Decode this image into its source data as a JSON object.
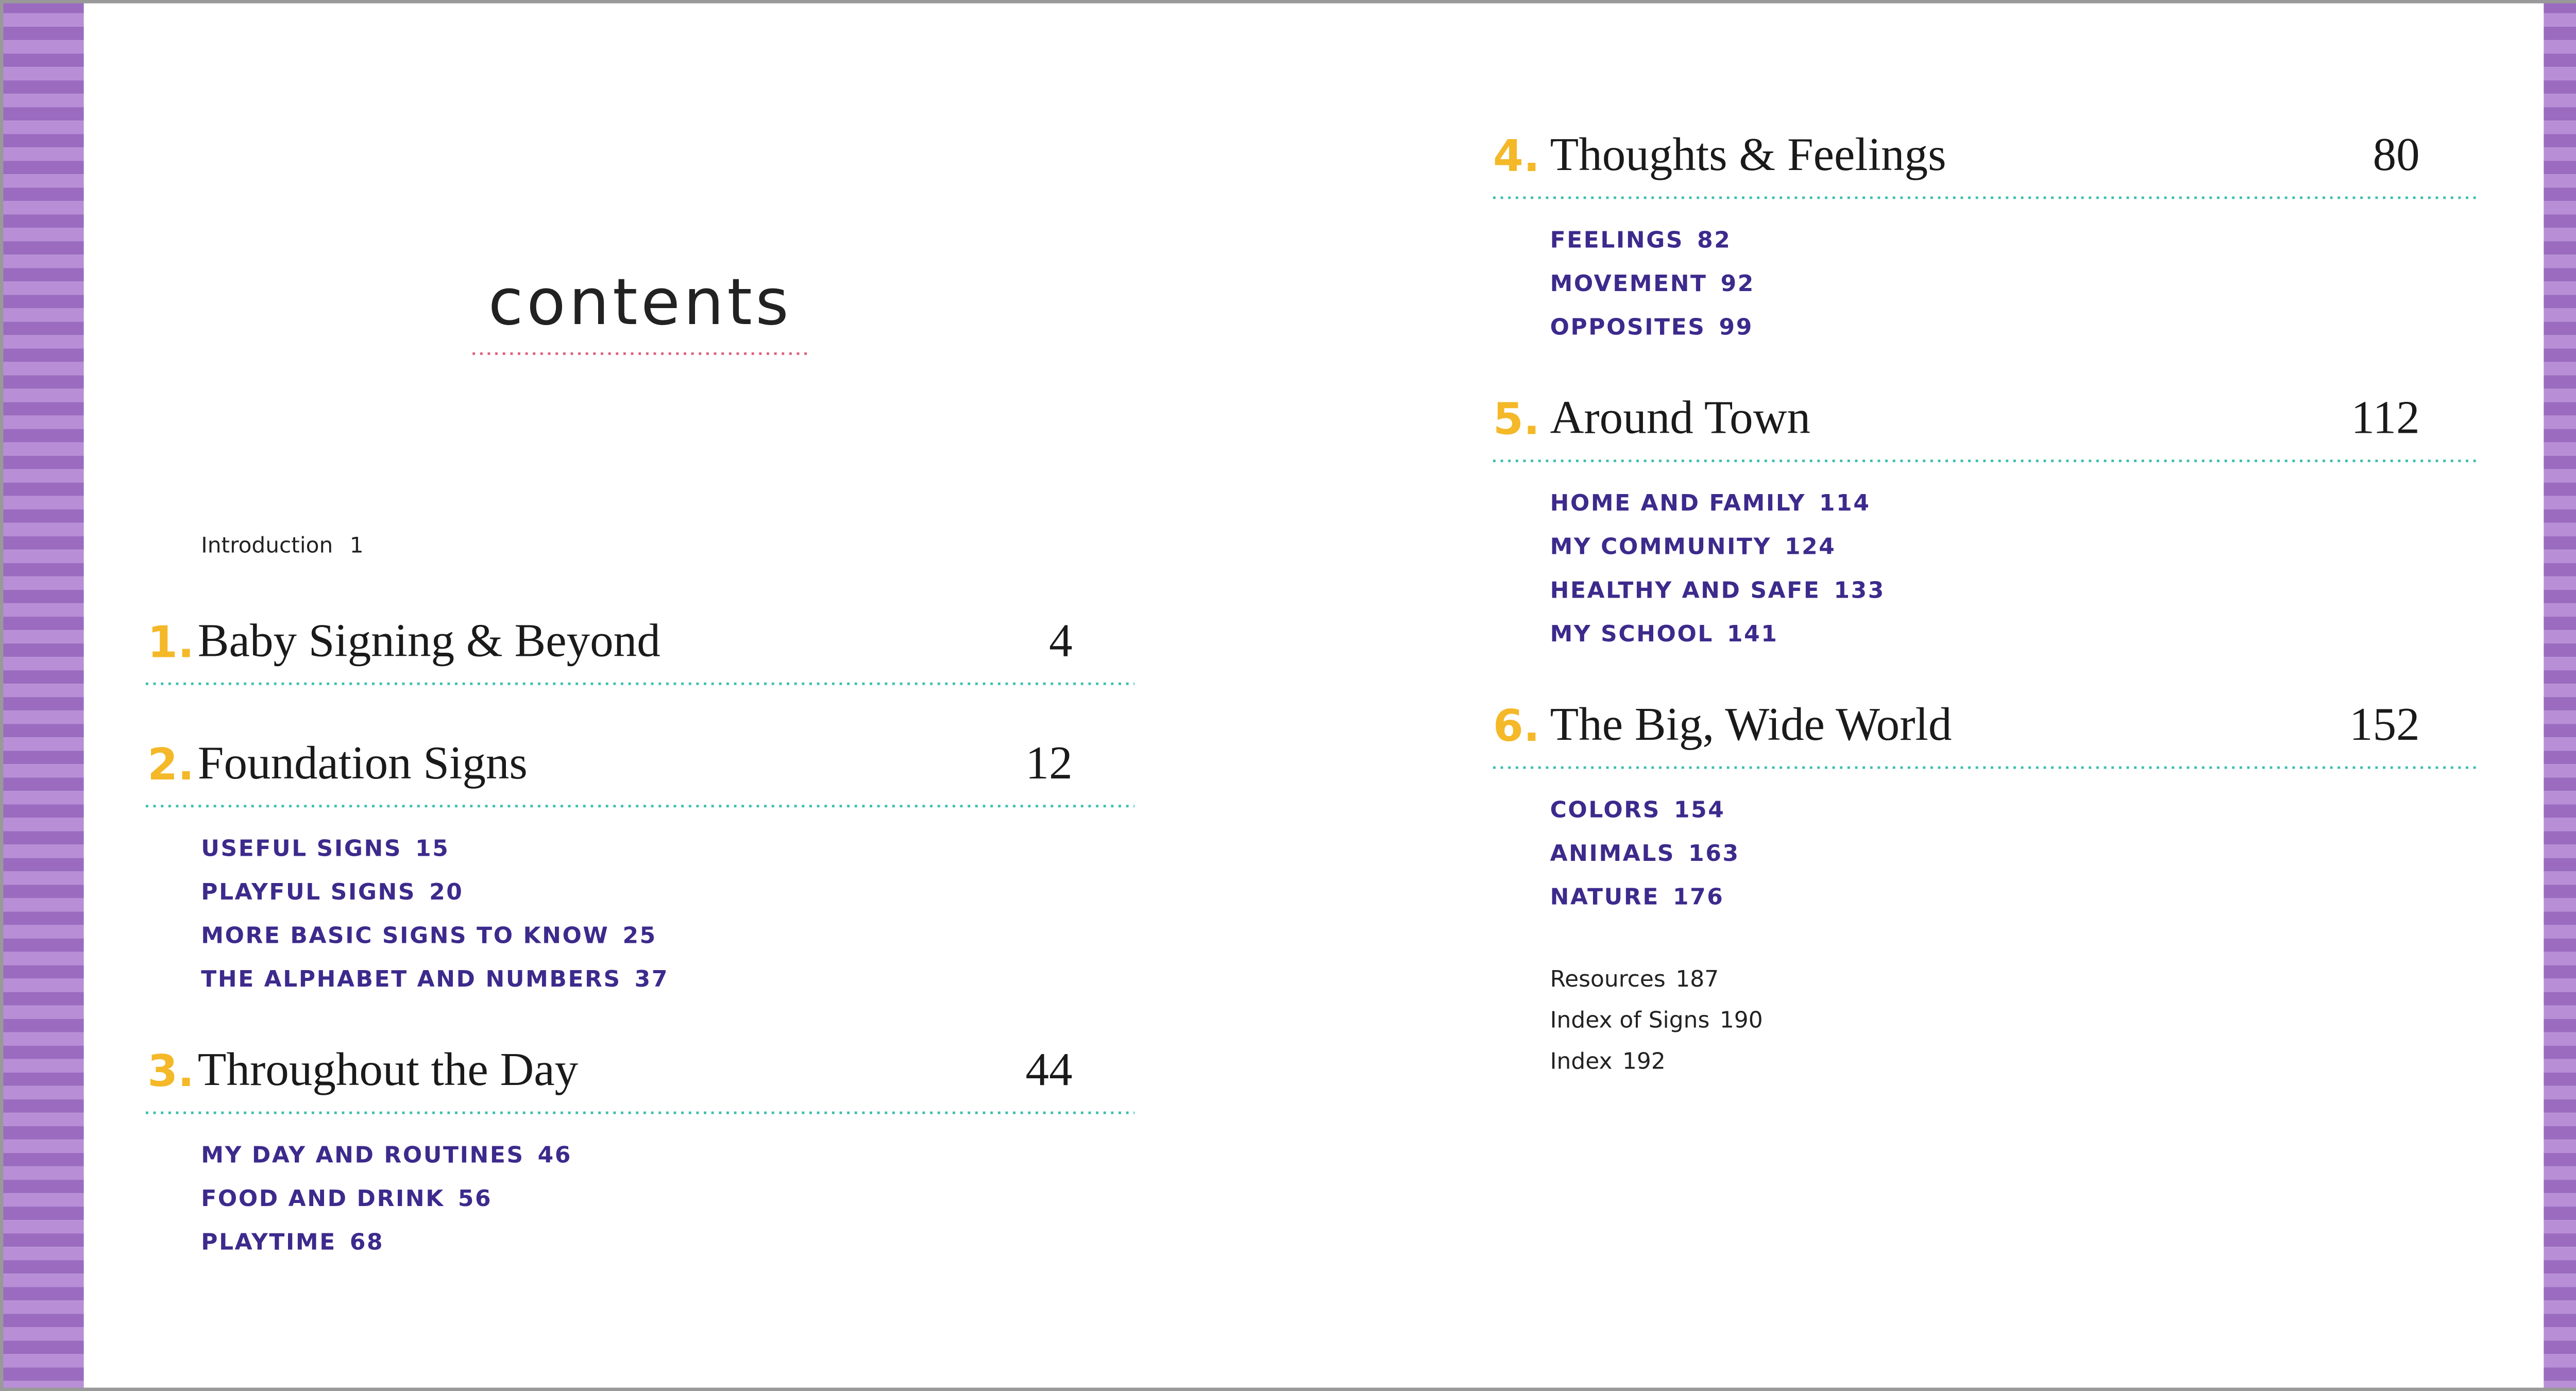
{
  "title": "contents",
  "intro": {
    "label": "Introduction",
    "page": 1
  },
  "chapters": [
    {
      "number": "1.",
      "title": "Baby Signing & Beyond",
      "page": 4,
      "sections": []
    },
    {
      "number": "2.",
      "title": "Foundation Signs",
      "page": 12,
      "sections": [
        {
          "label": "USEFUL SIGNS",
          "page": 15
        },
        {
          "label": "PLAYFUL SIGNS",
          "page": 20
        },
        {
          "label": "MORE BASIC SIGNS TO KNOW",
          "page": 25
        },
        {
          "label": "THE ALPHABET AND NUMBERS",
          "page": 37
        }
      ]
    },
    {
      "number": "3.",
      "title": "Throughout the Day",
      "page": 44,
      "sections": [
        {
          "label": "MY DAY AND ROUTINES",
          "page": 46
        },
        {
          "label": "FOOD AND DRINK",
          "page": 56
        },
        {
          "label": "PLAYTIME",
          "page": 68
        }
      ]
    },
    {
      "number": "4.",
      "title": "Thoughts & Feelings",
      "page": 80,
      "sections": [
        {
          "label": "FEELINGS",
          "page": 82
        },
        {
          "label": "MOVEMENT",
          "page": 92
        },
        {
          "label": "OPPOSITES",
          "page": 99
        }
      ]
    },
    {
      "number": "5.",
      "title": "Around Town",
      "page": 112,
      "sections": [
        {
          "label": "HOME AND FAMILY",
          "page": 114
        },
        {
          "label": "MY COMMUNITY",
          "page": 124
        },
        {
          "label": "HEALTHY AND SAFE",
          "page": 133
        },
        {
          "label": "MY SCHOOL",
          "page": 141
        }
      ]
    },
    {
      "number": "6.",
      "title": "The Big, Wide World",
      "page": 152,
      "sections": [
        {
          "label": "COLORS",
          "page": 154
        },
        {
          "label": "ANIMALS",
          "page": 163
        },
        {
          "label": "NATURE",
          "page": 176
        }
      ]
    }
  ],
  "back_matter": [
    {
      "label": "Resources",
      "page": 187
    },
    {
      "label": "Index of Signs",
      "page": 190
    },
    {
      "label": "Index",
      "page": 192
    }
  ]
}
